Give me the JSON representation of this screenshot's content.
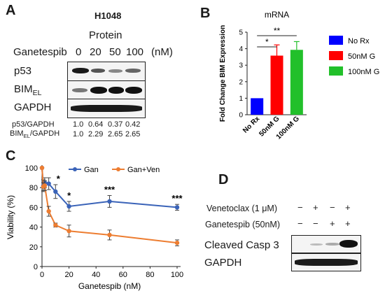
{
  "panel_a": {
    "letter": "A",
    "cell_line": "H1048",
    "subtitle": "Protein",
    "treatment_label": "Ganetespib",
    "doses": [
      "0",
      "20",
      "50",
      "100",
      "(nM)"
    ],
    "blots": [
      "p53",
      "BIM",
      "GAPDH"
    ],
    "bim_sub": "EL",
    "ratio_rows": [
      {
        "label": "p53/GAPDH",
        "values": [
          "1.0",
          "0.64",
          "0.37",
          "0.42"
        ]
      },
      {
        "label_main": "BIM",
        "label_sub": "EL",
        "label_tail": "/GAPDH",
        "values": [
          "1.0",
          "2.29",
          "2.65",
          "2.65"
        ]
      }
    ]
  },
  "panel_b": {
    "letter": "B",
    "chart_data": {
      "type": "bar",
      "title": "mRNA",
      "ylabel": "Fold Change BIM Expression",
      "categories": [
        "No Rx",
        "50nM G",
        "100nM G"
      ],
      "values": [
        1.0,
        3.58,
        3.93
      ],
      "errors": [
        0,
        0.65,
        0.5
      ],
      "colors": [
        "#0000ff",
        "#ff0000",
        "#22c02a"
      ],
      "ylim": [
        0,
        5
      ],
      "yticks": [
        "0",
        "1",
        "2",
        "3",
        "4",
        "5"
      ],
      "legend": [
        "No Rx",
        "50nM G",
        "100nM G"
      ],
      "legend_position": "right",
      "significance": [
        "*",
        "**"
      ]
    }
  },
  "panel_c": {
    "letter": "C",
    "chart_data": {
      "type": "line",
      "xlabel": "Ganetespib (nM)",
      "ylabel": "Viability (%)",
      "xlim": [
        0,
        100
      ],
      "ylim": [
        0,
        100
      ],
      "xticks": [
        "0",
        "20",
        "40",
        "60",
        "80",
        "100"
      ],
      "yticks": [
        "0",
        "20",
        "40",
        "60",
        "80",
        "100"
      ],
      "legend_position": "top",
      "series": [
        {
          "name": "Gan",
          "color": "#3a63b8",
          "x": [
            0,
            1,
            2,
            5,
            10,
            20,
            50,
            100
          ],
          "y": [
            100,
            82,
            85,
            84,
            76,
            61,
            66,
            60
          ],
          "err": [
            0,
            6,
            5,
            6,
            7,
            5,
            6,
            3
          ]
        },
        {
          "name": "Gan+Ven",
          "color": "#ed7d31",
          "x": [
            0,
            1,
            2,
            5,
            10,
            20,
            50,
            100
          ],
          "y": [
            100,
            81,
            82,
            56,
            42,
            36,
            32,
            24
          ],
          "err": [
            0,
            4,
            5,
            5,
            2,
            6,
            5,
            3
          ]
        }
      ],
      "significance": [
        {
          "x": 10,
          "label": "*"
        },
        {
          "x": 20,
          "label": "*"
        },
        {
          "x": 50,
          "label": "***"
        },
        {
          "x": 100,
          "label": "***"
        }
      ]
    }
  },
  "panel_d": {
    "letter": "D",
    "rows": [
      {
        "label": "Venetoclax (1 μM)",
        "signs": [
          "−",
          "+",
          "−",
          "+"
        ]
      },
      {
        "label": "Ganetespib (50nM)",
        "signs": [
          "−",
          "−",
          "+",
          "+"
        ]
      }
    ],
    "blots": [
      "Cleaved Casp 3",
      "GAPDH"
    ]
  }
}
